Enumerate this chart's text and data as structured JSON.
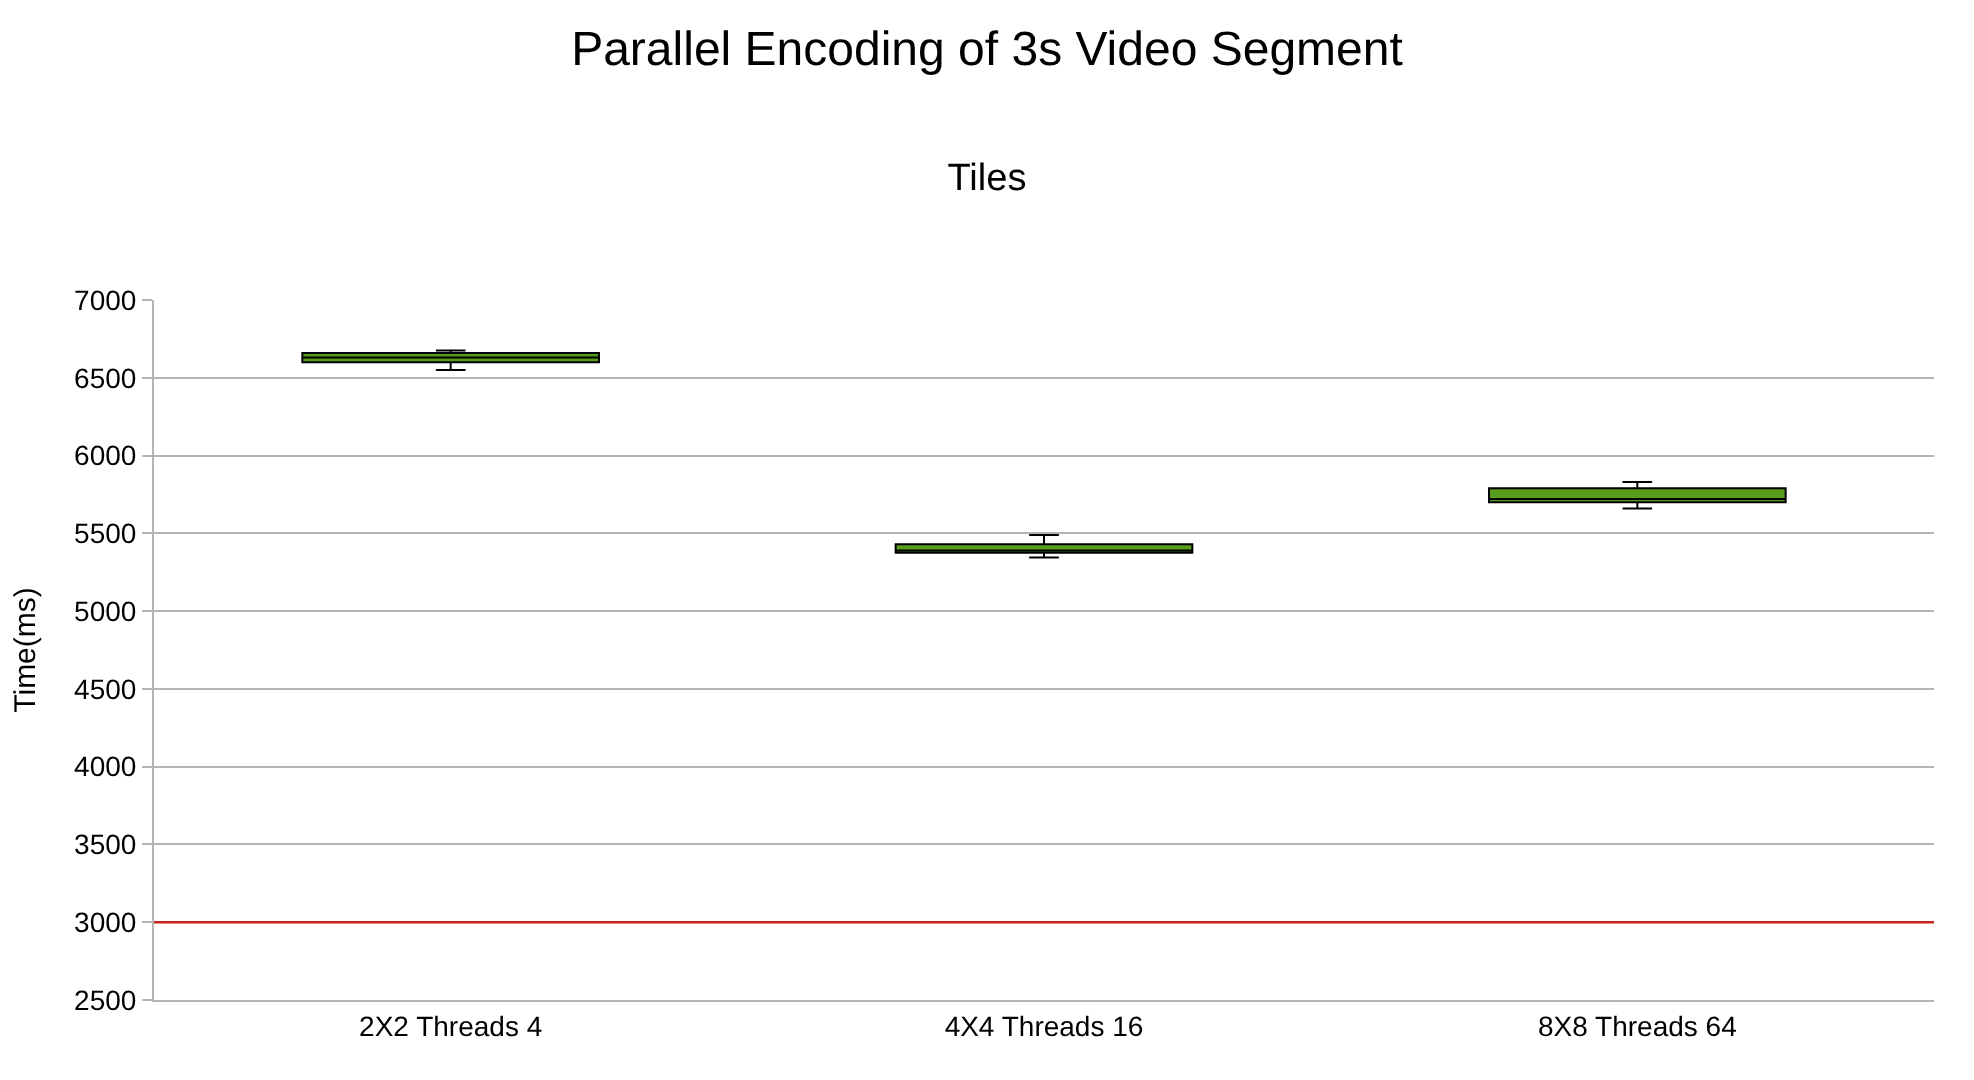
{
  "chart_data": {
    "type": "box",
    "title": "Parallel Encoding of 3s Video Segment",
    "subtitle": "Tiles",
    "ylabel": "Time(ms)",
    "categories": [
      "2X2 Threads 4",
      "4X4 Threads 16",
      "8X8 Threads 64"
    ],
    "series": [
      {
        "color": "#579d1c",
        "boxes": [
          {
            "low": 6550,
            "q1": 6600,
            "median": 6630,
            "q3": 6660,
            "high": 6675
          },
          {
            "low": 5345,
            "q1": 5375,
            "median": 5390,
            "q3": 5430,
            "high": 5490
          },
          {
            "low": 5660,
            "q1": 5700,
            "median": 5720,
            "q3": 5790,
            "high": 5830
          }
        ]
      }
    ],
    "ylim": [
      2500,
      7000
    ],
    "yticks": [
      2500,
      3000,
      3500,
      4000,
      4500,
      5000,
      5500,
      6000,
      6500,
      7000
    ],
    "grid": "y",
    "ref_lines": [
      {
        "axis": "y",
        "value": 3000,
        "color": "#c9211e"
      }
    ]
  }
}
